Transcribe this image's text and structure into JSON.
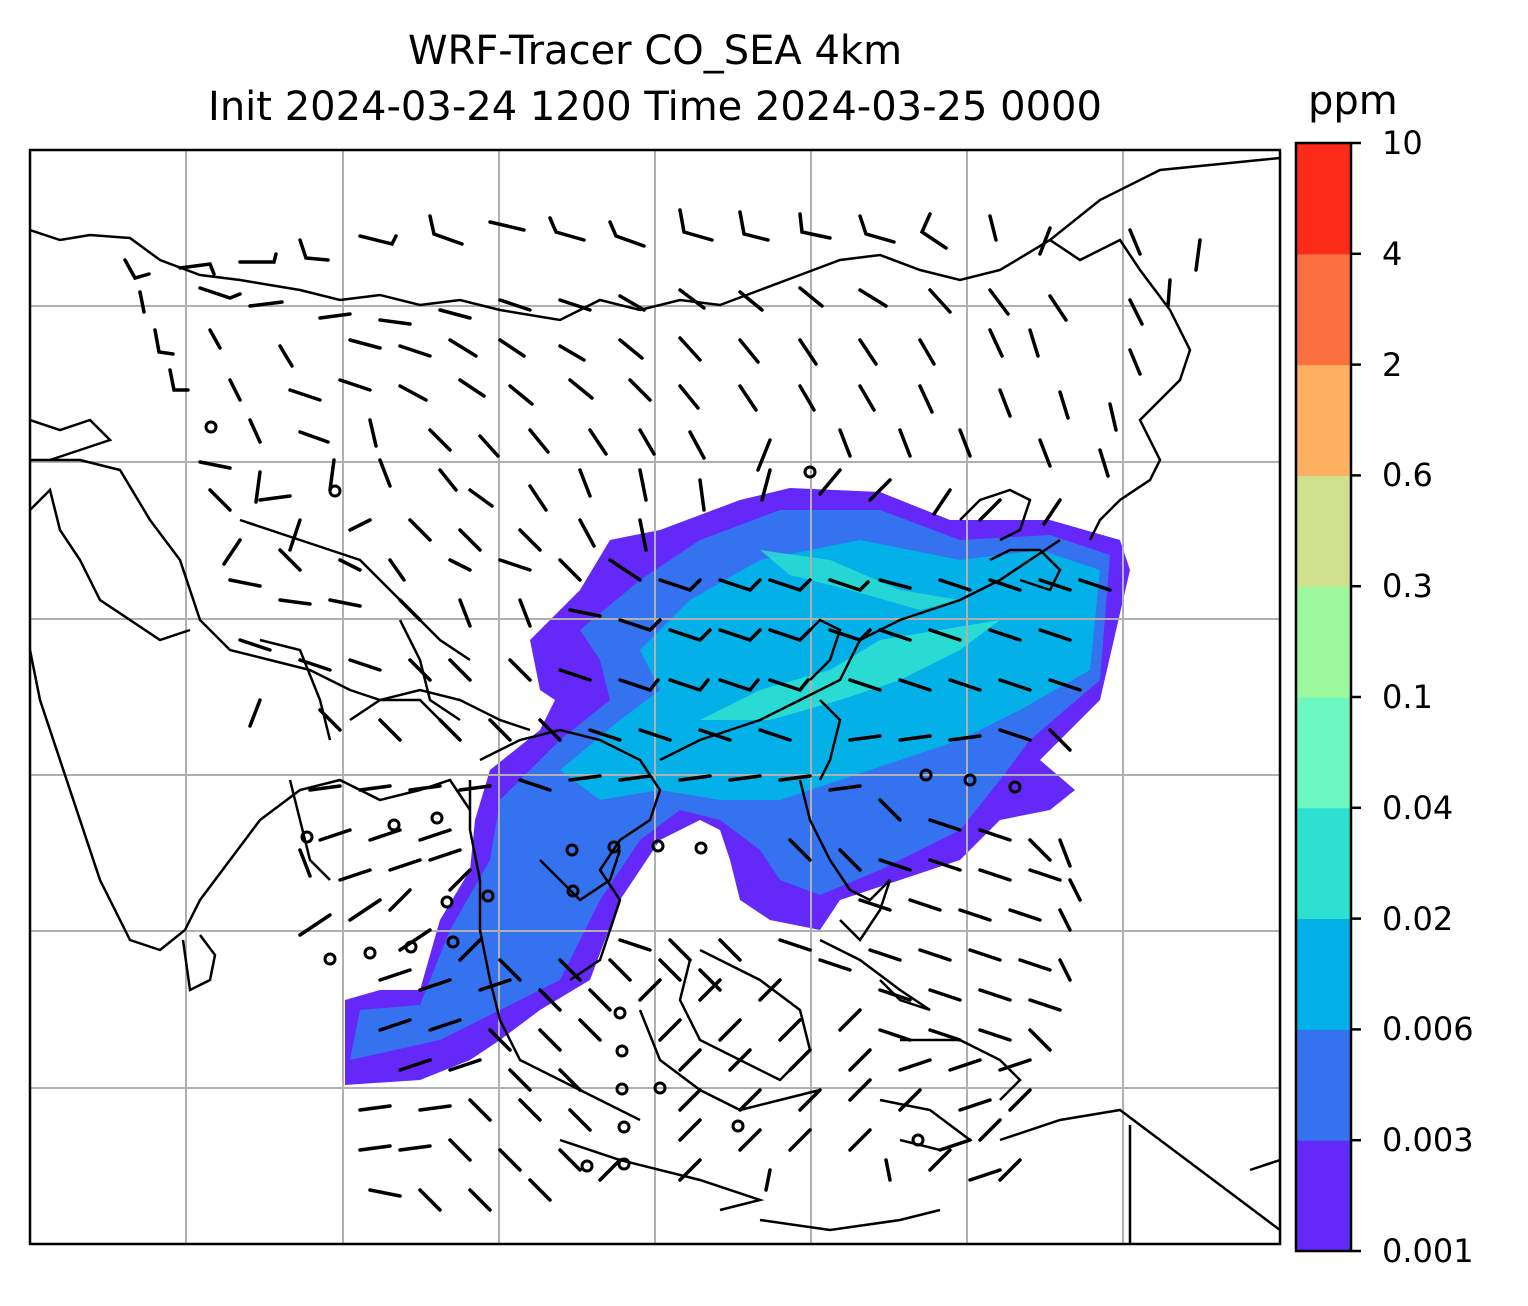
{
  "title_line1": "WRF-Tracer CO_SEA 4km",
  "title_line2": "Init 2024-03-24 1200 Time 2024-03-25 0000",
  "colorbar": {
    "unit": "ppm",
    "levels": [
      "0.001",
      "0.003",
      "0.006",
      "0.02",
      "0.04",
      "0.1",
      "0.3",
      "0.6",
      "2",
      "4",
      "10"
    ],
    "colors": [
      "#6428f8",
      "#3472f0",
      "#04b0e8",
      "#2ee0d0",
      "#6cf8c0",
      "#9cf89c",
      "#d0e08c",
      "#fcb060",
      "#fc7040",
      "#fc2a18"
    ]
  },
  "map": {
    "gridlines": true,
    "coastlines": true,
    "wind_barbs": true,
    "field": "CO_SEA tracer concentration"
  },
  "chart_data": {
    "type": "heatmap",
    "title": "WRF-Tracer CO_SEA 4km",
    "subtitle": "Init 2024-03-24 1200 Time 2024-03-25 0000",
    "colorbar_label": "ppm",
    "levels": [
      0.001,
      0.003,
      0.006,
      0.02,
      0.04,
      0.1,
      0.3,
      0.6,
      2,
      4,
      10
    ],
    "grid": true,
    "legend_position": "right"
  }
}
